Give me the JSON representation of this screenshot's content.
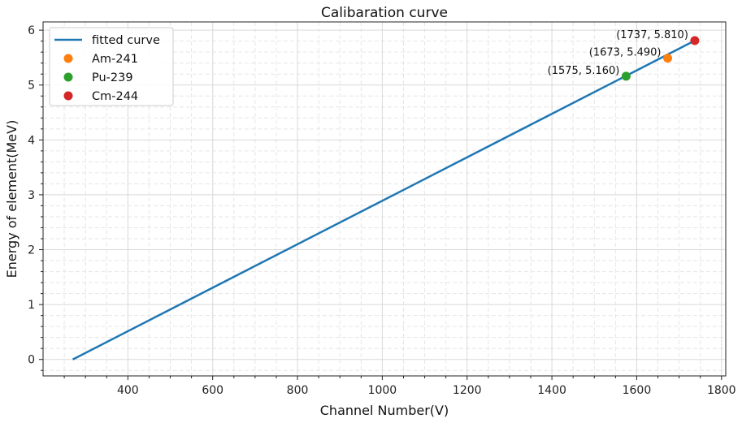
{
  "chart_data": {
    "type": "line",
    "title": "Calibaration curve",
    "xlabel": "Channel Number(V)",
    "ylabel": "Energy of element(MeV)",
    "xlim": [
      200,
      1810
    ],
    "ylim": [
      -0.3,
      6.15
    ],
    "xticks": [
      400,
      600,
      800,
      1000,
      1200,
      1400,
      1600,
      1800
    ],
    "yticks": [
      0,
      1,
      2,
      3,
      4,
      5,
      6
    ],
    "grid": true,
    "legend_position": "upper-left",
    "series": [
      {
        "name": "fitted curve",
        "kind": "line",
        "color": "#1f77b4",
        "x": [
          270,
          1737
        ],
        "y": [
          0,
          5.81
        ]
      },
      {
        "name": "Am-241",
        "kind": "scatter",
        "color": "#ff7f0e",
        "x": [
          1673
        ],
        "y": [
          5.49
        ]
      },
      {
        "name": "Pu-239",
        "kind": "scatter",
        "color": "#2ca02c",
        "x": [
          1575
        ],
        "y": [
          5.16
        ]
      },
      {
        "name": "Cm-244",
        "kind": "scatter",
        "color": "#d62728",
        "x": [
          1737
        ],
        "y": [
          5.81
        ]
      }
    ],
    "annotations": [
      {
        "text": "(1575, 5.160)",
        "x": 1575,
        "y": 5.16
      },
      {
        "text": "(1673, 5.490)",
        "x": 1673,
        "y": 5.49
      },
      {
        "text": "(1737, 5.810)",
        "x": 1737,
        "y": 5.81
      }
    ]
  }
}
